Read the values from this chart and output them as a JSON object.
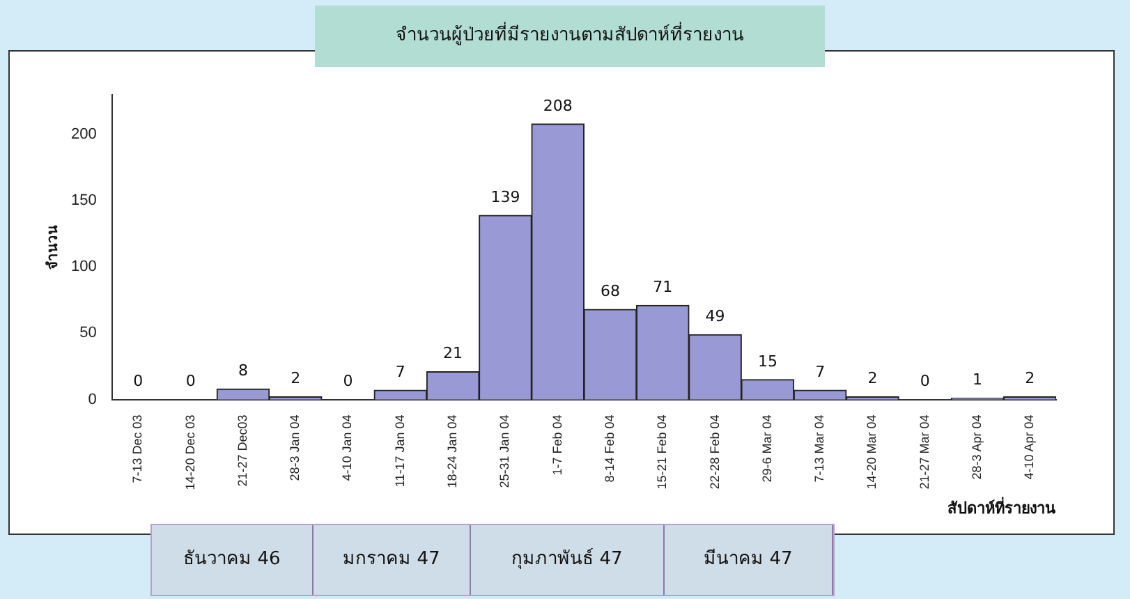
{
  "chart_data": {
    "type": "bar",
    "title": "จำนวนผู้ป่วยที่มีรายงานตามสัปดาห์ที่รายงาน",
    "xlabel": "สัปดาห์ที่รายงาน",
    "ylabel": "จำนวน",
    "categories": [
      "7-13 Dec 03",
      "14-20 Dec 03",
      "21-27 Dec03",
      "28-3 Jan 04",
      "4-10 Jan 04",
      "11-17 Jan 04",
      "18-24 Jan 04",
      "25-31 Jan 04",
      "1-7 Feb 04",
      "8-14 Feb 04",
      "15-21 Feb 04",
      "22-28 Feb 04",
      "29-6 Mar 04",
      "7-13 Mar 04",
      "14-20 Mar 04",
      "21-27 Mar 04",
      "28-3 Apr 04",
      "4-10 Apr 04"
    ],
    "values": [
      0,
      0,
      8,
      2,
      0,
      7,
      21,
      139,
      208,
      68,
      71,
      49,
      15,
      7,
      2,
      0,
      1,
      2
    ],
    "color": "#9999d6",
    "ylim": [
      0,
      230
    ],
    "yticks": [
      0,
      50,
      100,
      150,
      200
    ],
    "grid": false,
    "legend": false,
    "data_labels": true,
    "annotations": [
      "ธันวาคม 46",
      "มกราคม 47",
      "กุมภาพันธ์ 47",
      "มีนาคม 47"
    ]
  }
}
